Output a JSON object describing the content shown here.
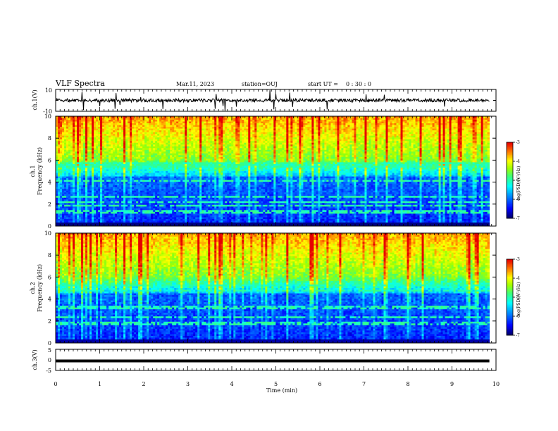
{
  "header": {
    "title": "VLF Spectra",
    "date": "Mar.11, 2023",
    "station": "station=OUJ",
    "start_label": "start  UT =",
    "start_time": "0 : 30 : 0"
  },
  "chart_data": [
    {
      "type": "line",
      "name": "ch1-waveform",
      "ylabel": "ch.1(V)",
      "ylim": [
        -10,
        10
      ],
      "y_ticks": [
        "10",
        "-10"
      ],
      "xlim": [
        0,
        10
      ],
      "approx_level": 0,
      "color": "#000000"
    },
    {
      "type": "heatmap",
      "name": "ch1-spectrogram",
      "ylabel": "ch.1 Frequency (kHz)",
      "ylabel_line1": "ch.1",
      "ylabel_line2": "Frequency (kHz)",
      "xlim": [
        0,
        10
      ],
      "ylim": [
        0,
        10
      ],
      "y_ticks": [
        "0",
        "2",
        "4",
        "6",
        "8",
        "10"
      ],
      "data_end_min": 9.85,
      "colorbar": {
        "label": "log(PSD)(V²/Hz)",
        "ticks": [
          "-3",
          "-4",
          "-5",
          "-6",
          "-7"
        ],
        "range": [
          -7,
          -3
        ]
      }
    },
    {
      "type": "heatmap",
      "name": "ch2-spectrogram",
      "ylabel": "ch.2 Frequency (kHz)",
      "ylabel_line1": "ch.2",
      "ylabel_line2": "Frequency (kHz)",
      "xlim": [
        0,
        10
      ],
      "ylim": [
        0,
        10
      ],
      "y_ticks": [
        "0",
        "2",
        "4",
        "6",
        "8",
        "10"
      ],
      "data_end_min": 9.85,
      "colorbar": {
        "label": "log(PSD)(V²/Hz)",
        "ticks": [
          "-3",
          "-4",
          "-5",
          "-6",
          "-7"
        ],
        "range": [
          -7,
          -3
        ]
      }
    },
    {
      "type": "line",
      "name": "ch3-waveform",
      "ylabel": "ch.3(V)",
      "ylim": [
        -5,
        5
      ],
      "y_ticks": [
        "5",
        "0",
        "-5"
      ],
      "xlim": [
        0,
        10
      ],
      "approx_level": -0.5,
      "color": "#000000"
    }
  ],
  "x_axis": {
    "label": "Time (min)",
    "ticks": [
      "0",
      "1",
      "2",
      "3",
      "4",
      "5",
      "6",
      "7",
      "8",
      "9",
      "10"
    ],
    "range": [
      0,
      10
    ]
  },
  "colormap": [
    "#000080",
    "#0000ff",
    "#0080ff",
    "#00ffff",
    "#00ff80",
    "#80ff00",
    "#ffff00",
    "#ff8000",
    "#ff0000",
    "#ffffff"
  ]
}
